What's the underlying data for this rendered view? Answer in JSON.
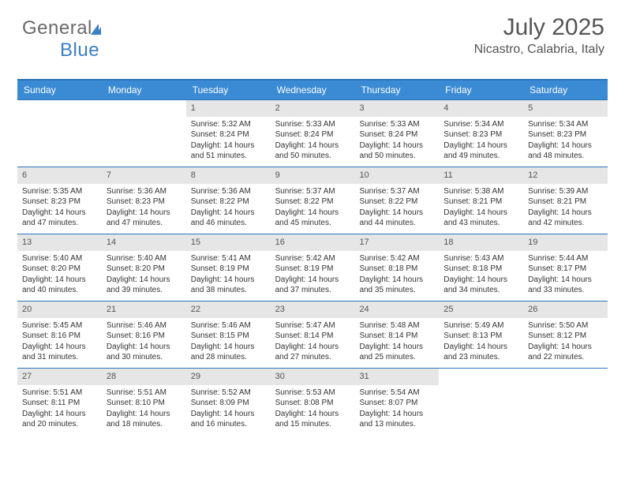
{
  "logo": {
    "part1": "General",
    "part2": "Blue"
  },
  "title": "July 2025",
  "location": "Nicastro, Calabria, Italy",
  "colors": {
    "header_bg": "#3b8bd4",
    "border": "#2d75bb",
    "daynum_bg": "#e6e6e6",
    "text": "#333333",
    "logo_gray": "#6a6a6a",
    "logo_blue": "#3b7fc4"
  },
  "day_headers": [
    "Sunday",
    "Monday",
    "Tuesday",
    "Wednesday",
    "Thursday",
    "Friday",
    "Saturday"
  ],
  "weeks": [
    [
      {
        "n": "",
        "empty": true
      },
      {
        "n": "",
        "empty": true
      },
      {
        "n": "1",
        "sunrise": "Sunrise: 5:32 AM",
        "sunset": "Sunset: 8:24 PM",
        "daylight": "Daylight: 14 hours and 51 minutes."
      },
      {
        "n": "2",
        "sunrise": "Sunrise: 5:33 AM",
        "sunset": "Sunset: 8:24 PM",
        "daylight": "Daylight: 14 hours and 50 minutes."
      },
      {
        "n": "3",
        "sunrise": "Sunrise: 5:33 AM",
        "sunset": "Sunset: 8:24 PM",
        "daylight": "Daylight: 14 hours and 50 minutes."
      },
      {
        "n": "4",
        "sunrise": "Sunrise: 5:34 AM",
        "sunset": "Sunset: 8:23 PM",
        "daylight": "Daylight: 14 hours and 49 minutes."
      },
      {
        "n": "5",
        "sunrise": "Sunrise: 5:34 AM",
        "sunset": "Sunset: 8:23 PM",
        "daylight": "Daylight: 14 hours and 48 minutes."
      }
    ],
    [
      {
        "n": "6",
        "sunrise": "Sunrise: 5:35 AM",
        "sunset": "Sunset: 8:23 PM",
        "daylight": "Daylight: 14 hours and 47 minutes."
      },
      {
        "n": "7",
        "sunrise": "Sunrise: 5:36 AM",
        "sunset": "Sunset: 8:23 PM",
        "daylight": "Daylight: 14 hours and 47 minutes."
      },
      {
        "n": "8",
        "sunrise": "Sunrise: 5:36 AM",
        "sunset": "Sunset: 8:22 PM",
        "daylight": "Daylight: 14 hours and 46 minutes."
      },
      {
        "n": "9",
        "sunrise": "Sunrise: 5:37 AM",
        "sunset": "Sunset: 8:22 PM",
        "daylight": "Daylight: 14 hours and 45 minutes."
      },
      {
        "n": "10",
        "sunrise": "Sunrise: 5:37 AM",
        "sunset": "Sunset: 8:22 PM",
        "daylight": "Daylight: 14 hours and 44 minutes."
      },
      {
        "n": "11",
        "sunrise": "Sunrise: 5:38 AM",
        "sunset": "Sunset: 8:21 PM",
        "daylight": "Daylight: 14 hours and 43 minutes."
      },
      {
        "n": "12",
        "sunrise": "Sunrise: 5:39 AM",
        "sunset": "Sunset: 8:21 PM",
        "daylight": "Daylight: 14 hours and 42 minutes."
      }
    ],
    [
      {
        "n": "13",
        "sunrise": "Sunrise: 5:40 AM",
        "sunset": "Sunset: 8:20 PM",
        "daylight": "Daylight: 14 hours and 40 minutes."
      },
      {
        "n": "14",
        "sunrise": "Sunrise: 5:40 AM",
        "sunset": "Sunset: 8:20 PM",
        "daylight": "Daylight: 14 hours and 39 minutes."
      },
      {
        "n": "15",
        "sunrise": "Sunrise: 5:41 AM",
        "sunset": "Sunset: 8:19 PM",
        "daylight": "Daylight: 14 hours and 38 minutes."
      },
      {
        "n": "16",
        "sunrise": "Sunrise: 5:42 AM",
        "sunset": "Sunset: 8:19 PM",
        "daylight": "Daylight: 14 hours and 37 minutes."
      },
      {
        "n": "17",
        "sunrise": "Sunrise: 5:42 AM",
        "sunset": "Sunset: 8:18 PM",
        "daylight": "Daylight: 14 hours and 35 minutes."
      },
      {
        "n": "18",
        "sunrise": "Sunrise: 5:43 AM",
        "sunset": "Sunset: 8:18 PM",
        "daylight": "Daylight: 14 hours and 34 minutes."
      },
      {
        "n": "19",
        "sunrise": "Sunrise: 5:44 AM",
        "sunset": "Sunset: 8:17 PM",
        "daylight": "Daylight: 14 hours and 33 minutes."
      }
    ],
    [
      {
        "n": "20",
        "sunrise": "Sunrise: 5:45 AM",
        "sunset": "Sunset: 8:16 PM",
        "daylight": "Daylight: 14 hours and 31 minutes."
      },
      {
        "n": "21",
        "sunrise": "Sunrise: 5:46 AM",
        "sunset": "Sunset: 8:16 PM",
        "daylight": "Daylight: 14 hours and 30 minutes."
      },
      {
        "n": "22",
        "sunrise": "Sunrise: 5:46 AM",
        "sunset": "Sunset: 8:15 PM",
        "daylight": "Daylight: 14 hours and 28 minutes."
      },
      {
        "n": "23",
        "sunrise": "Sunrise: 5:47 AM",
        "sunset": "Sunset: 8:14 PM",
        "daylight": "Daylight: 14 hours and 27 minutes."
      },
      {
        "n": "24",
        "sunrise": "Sunrise: 5:48 AM",
        "sunset": "Sunset: 8:14 PM",
        "daylight": "Daylight: 14 hours and 25 minutes."
      },
      {
        "n": "25",
        "sunrise": "Sunrise: 5:49 AM",
        "sunset": "Sunset: 8:13 PM",
        "daylight": "Daylight: 14 hours and 23 minutes."
      },
      {
        "n": "26",
        "sunrise": "Sunrise: 5:50 AM",
        "sunset": "Sunset: 8:12 PM",
        "daylight": "Daylight: 14 hours and 22 minutes."
      }
    ],
    [
      {
        "n": "27",
        "sunrise": "Sunrise: 5:51 AM",
        "sunset": "Sunset: 8:11 PM",
        "daylight": "Daylight: 14 hours and 20 minutes."
      },
      {
        "n": "28",
        "sunrise": "Sunrise: 5:51 AM",
        "sunset": "Sunset: 8:10 PM",
        "daylight": "Daylight: 14 hours and 18 minutes."
      },
      {
        "n": "29",
        "sunrise": "Sunrise: 5:52 AM",
        "sunset": "Sunset: 8:09 PM",
        "daylight": "Daylight: 14 hours and 16 minutes."
      },
      {
        "n": "30",
        "sunrise": "Sunrise: 5:53 AM",
        "sunset": "Sunset: 8:08 PM",
        "daylight": "Daylight: 14 hours and 15 minutes."
      },
      {
        "n": "31",
        "sunrise": "Sunrise: 5:54 AM",
        "sunset": "Sunset: 8:07 PM",
        "daylight": "Daylight: 14 hours and 13 minutes."
      },
      {
        "n": "",
        "empty": true
      },
      {
        "n": "",
        "empty": true
      }
    ]
  ]
}
